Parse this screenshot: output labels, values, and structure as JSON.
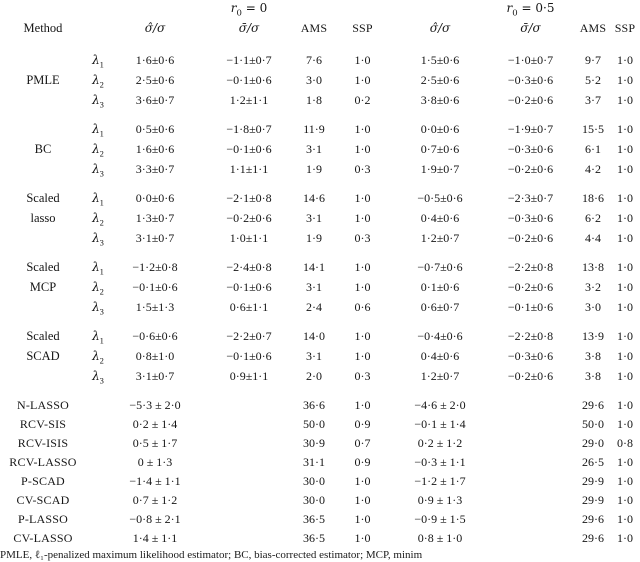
{
  "table": {
    "symbols": {
      "lambda": "λ",
      "r_var": "r",
      "r_sub": "0"
    },
    "headers": {
      "method": "Method",
      "r0_left_eq": " = 0",
      "r0_right_eq": " = 0·5",
      "sigma_hat": "σ̂/σ",
      "sigma_bar": "σ̄/σ",
      "ams": "AMS",
      "ssp": "SSP"
    },
    "blocks": [
      {
        "method_lines": [
          "PMLE"
        ],
        "rows": [
          {
            "lambda": "1",
            "cells": [
              "1·6±0·6",
              "−1·1±0·7",
              "7·6",
              "1·0",
              "1·5±0·6",
              "−1·0±0·7",
              "9·7",
              "1·0"
            ]
          },
          {
            "lambda": "2",
            "cells": [
              "2·5±0·6",
              "−0·1±0·6",
              "3·0",
              "1·0",
              "2·5±0·6",
              "−0·3±0·6",
              "5·2",
              "1·0"
            ]
          },
          {
            "lambda": "3",
            "cells": [
              "3·6±0·7",
              "1·2±1·1",
              "1·8",
              "0·2",
              "3·8±0·6",
              "−0·2±0·6",
              "3·7",
              "1·0"
            ]
          }
        ]
      },
      {
        "method_lines": [
          "BC"
        ],
        "rows": [
          {
            "lambda": "1",
            "cells": [
              "0·5±0·6",
              "−1·8±0·7",
              "11·9",
              "1·0",
              "0·0±0·6",
              "−1·9±0·7",
              "15·5",
              "1·0"
            ]
          },
          {
            "lambda": "2",
            "cells": [
              "1·6±0·6",
              "−0·1±0·6",
              "3·1",
              "1·0",
              "0·7±0·6",
              "−0·3±0·6",
              "6·1",
              "1·0"
            ]
          },
          {
            "lambda": "3",
            "cells": [
              "3·3±0·7",
              "1·1±1·1",
              "1·9",
              "0·3",
              "1·9±0·7",
              "−0·2±0·6",
              "4·2",
              "1·0"
            ]
          }
        ]
      },
      {
        "method_lines": [
          "Scaled",
          "lasso"
        ],
        "rows": [
          {
            "lambda": "1",
            "cells": [
              "0·0±0·6",
              "−2·1±0·8",
              "14·6",
              "1·0",
              "−0·5±0·6",
              "−2·3±0·7",
              "18·6",
              "1·0"
            ]
          },
          {
            "lambda": "2",
            "cells": [
              "1·3±0·7",
              "−0·2±0·6",
              "3·1",
              "1·0",
              "0·4±0·6",
              "−0·3±0·6",
              "6·2",
              "1·0"
            ]
          },
          {
            "lambda": "3",
            "cells": [
              "3·1±0·7",
              "1·0±1·1",
              "1·9",
              "0·3",
              "1·2±0·7",
              "−0·2±0·6",
              "4·4",
              "1·0"
            ]
          }
        ]
      },
      {
        "method_lines": [
          "Scaled",
          "MCP"
        ],
        "rows": [
          {
            "lambda": "1",
            "cells": [
              "−1·2±0·8",
              "−2·4±0·8",
              "14·1",
              "1·0",
              "−0·7±0·6",
              "−2·2±0·8",
              "13·8",
              "1·0"
            ]
          },
          {
            "lambda": "2",
            "cells": [
              "−0·1±0·6",
              "−0·1±0·6",
              "3·1",
              "1·0",
              "0·1±0·6",
              "−0·2±0·6",
              "3·2",
              "1·0"
            ]
          },
          {
            "lambda": "3",
            "cells": [
              "1·5±1·3",
              "0·6±1·1",
              "2·4",
              "0·6",
              "0·6±0·7",
              "−0·1±0·6",
              "3·0",
              "1·0"
            ]
          }
        ]
      },
      {
        "method_lines": [
          "Scaled",
          "SCAD"
        ],
        "rows": [
          {
            "lambda": "1",
            "cells": [
              "−0·6±0·6",
              "−2·2±0·7",
              "14·0",
              "1·0",
              "−0·4±0·6",
              "−2·2±0·8",
              "13·9",
              "1·0"
            ]
          },
          {
            "lambda": "2",
            "cells": [
              "0·8±1·0",
              "−0·1±0·6",
              "3·1",
              "1·0",
              "0·4±0·6",
              "−0·3±0·6",
              "3·8",
              "1·0"
            ]
          },
          {
            "lambda": "3",
            "cells": [
              "3·1±0·7",
              "0·9±1·1",
              "2·0",
              "0·3",
              "1·2±0·7",
              "−0·2±0·6",
              "3·8",
              "1·0"
            ]
          }
        ]
      }
    ],
    "simple_rows": [
      {
        "method": "N-LASSO",
        "cells": [
          "−5·3 ± 2·0",
          "",
          "36·6",
          "1·0",
          "−4·6 ± 2·0",
          "",
          "29·6",
          "1·0"
        ]
      },
      {
        "method": "RCV-SIS",
        "cells": [
          "0·2 ± 1·4",
          "",
          "50·0",
          "0·9",
          "−0·1 ± 1·4",
          "",
          "50·0",
          "1·0"
        ]
      },
      {
        "method": "RCV-ISIS",
        "cells": [
          "0·5 ± 1·7",
          "",
          "30·9",
          "0·7",
          "0·2 ± 1·2",
          "",
          "29·0",
          "0·8"
        ]
      },
      {
        "method": "RCV-LASSO",
        "cells": [
          "0 ± 1·3",
          "",
          "31·1",
          "0·9",
          "−0·3 ± 1·1",
          "",
          "26·5",
          "1·0"
        ]
      },
      {
        "method": "P-SCAD",
        "cells": [
          "−1·4 ± 1·1",
          "",
          "30·0",
          "1·0",
          "−1·2 ± 1·7",
          "",
          "29·9",
          "1·0"
        ]
      },
      {
        "method": "CV-SCAD",
        "cells": [
          "0·7 ± 1·2",
          "",
          "30·0",
          "1·0",
          "0·9 ± 1·3",
          "",
          "29·9",
          "1·0"
        ]
      },
      {
        "method": "P-LASSO",
        "cells": [
          "−0·8 ± 2·1",
          "",
          "36·5",
          "1·0",
          "−0·9 ± 1·5",
          "",
          "29·6",
          "1·0"
        ]
      },
      {
        "method": "CV-LASSO",
        "cells": [
          "1·4 ± 1·1",
          "",
          "36·5",
          "1·0",
          "0·8 ± 1·0",
          "",
          "29·6",
          "1·0"
        ]
      }
    ],
    "footnote": "PMLE, ℓ₁-penalized maximum likelihood estimator; BC, bias-corrected estimator; MCP, minim"
  }
}
